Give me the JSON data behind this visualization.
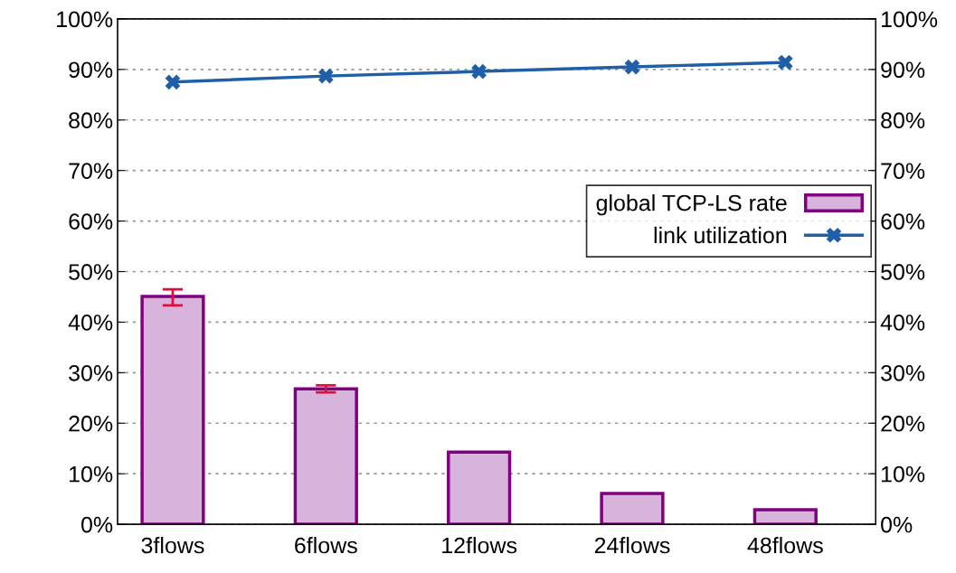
{
  "chart_data": {
    "type": "bar",
    "categories": [
      "3flows",
      "6flows",
      "12flows",
      "24flows",
      "48flows"
    ],
    "series": [
      {
        "name": "global TCP-LS rate",
        "color": "#d8b4dc",
        "values": [
          45.1,
          26.8,
          14.3,
          6.1,
          2.9
        ],
        "errors": [
          [
            43.3,
            46.5
          ],
          [
            26.1,
            27.5
          ],
          null,
          null,
          null
        ]
      },
      {
        "name": "link utilization",
        "type": "line",
        "color": "#1f5fa8",
        "marker": "cross",
        "values": [
          87.5,
          88.7,
          89.6,
          90.5,
          91.4
        ]
      }
    ],
    "ylim": [
      0,
      100
    ],
    "yticks": [
      {
        "value": 0,
        "label": "0%"
      },
      {
        "value": 10,
        "label": "10%"
      },
      {
        "value": 20,
        "label": "20%"
      },
      {
        "value": 30,
        "label": "30%"
      },
      {
        "value": 40,
        "label": "40%"
      },
      {
        "value": 50,
        "label": "50%"
      },
      {
        "value": 60,
        "label": "60%"
      },
      {
        "value": 70,
        "label": "70%"
      },
      {
        "value": 80,
        "label": "80%"
      },
      {
        "value": 90,
        "label": "90%"
      },
      {
        "value": 100,
        "label": "100%"
      }
    ],
    "y2lim": [
      0,
      100
    ],
    "y2ticks": [
      {
        "value": 0,
        "label": "0%"
      },
      {
        "value": 10,
        "label": "10%"
      },
      {
        "value": 20,
        "label": "20%"
      },
      {
        "value": 30,
        "label": "30%"
      },
      {
        "value": 40,
        "label": "40%"
      },
      {
        "value": 50,
        "label": "50%"
      },
      {
        "value": 60,
        "label": "60%"
      },
      {
        "value": 70,
        "label": "70%"
      },
      {
        "value": 80,
        "label": "80%"
      },
      {
        "value": 90,
        "label": "90%"
      },
      {
        "value": 100,
        "label": "100%"
      }
    ],
    "grid": "y",
    "legend": "right"
  }
}
